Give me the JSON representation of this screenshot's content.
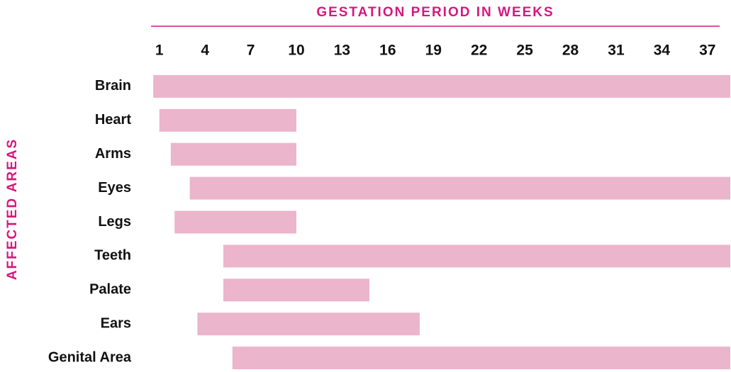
{
  "chart_data": {
    "type": "range-bar",
    "title": "GESTATION PERIOD IN WEEKS",
    "ylabel": "AFFECTED AREAS",
    "categories": [
      "Brain",
      "Heart",
      "Arms",
      "Eyes",
      "Legs",
      "Teeth",
      "Palate",
      "Ears",
      "Genital Area"
    ],
    "start": [
      0.6,
      1,
      1.75,
      3,
      2,
      5.2,
      5.2,
      3.5,
      5.8
    ],
    "end": [
      38.5,
      10,
      10,
      38.5,
      10,
      38.5,
      14.8,
      18.1,
      38.5
    ],
    "color": "#ebb5cc",
    "accent": "#d6187f",
    "xlim": [
      0.5,
      38.5
    ],
    "xticks": [
      1,
      4,
      7,
      10,
      13,
      16,
      19,
      22,
      25,
      28,
      31,
      34,
      37
    ]
  }
}
